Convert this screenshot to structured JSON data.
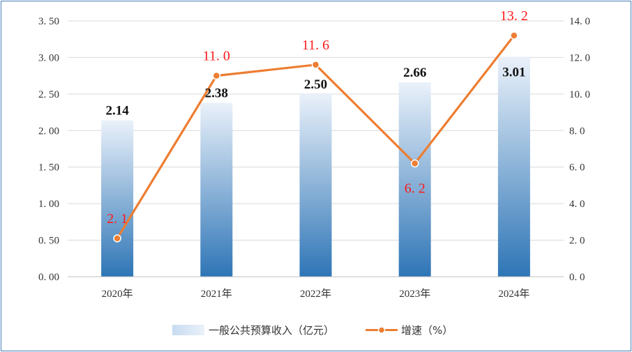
{
  "chart_data": {
    "type": "bar",
    "categories": [
      "2020年",
      "2021年",
      "2022年",
      "2023年",
      "2024年"
    ],
    "series": [
      {
        "name": "一般公共预算收入（亿元）",
        "type": "bar",
        "axis": "left",
        "values": [
          2.14,
          2.38,
          2.5,
          2.66,
          3.01
        ],
        "labels": [
          "2.14",
          "2.38",
          "2.50",
          "2.66",
          "3.01"
        ],
        "color_top": "#eaf1fa",
        "color_bottom": "#2e75b6"
      },
      {
        "name": "增速（%）",
        "type": "line",
        "axis": "right",
        "values": [
          2.1,
          11.0,
          11.6,
          6.2,
          13.2
        ],
        "labels": [
          "2. 1",
          "11. 0",
          "11. 6",
          "6. 2",
          "13. 2"
        ],
        "color": "#ed7d31",
        "label_color": "#ff1a1a"
      }
    ],
    "y_left": {
      "ylim": [
        0,
        3.5
      ],
      "ticks": [
        "0. 00",
        "0. 50",
        "1. 00",
        "1. 50",
        "2. 00",
        "2. 50",
        "3. 00",
        "3. 50"
      ]
    },
    "y_right": {
      "ylim": [
        0,
        14
      ],
      "ticks": [
        "0. 0",
        "2. 0",
        "4. 0",
        "6. 0",
        "8. 0",
        "10. 0",
        "12. 0",
        "14. 0"
      ]
    },
    "grid": true,
    "legend_position": "bottom"
  }
}
